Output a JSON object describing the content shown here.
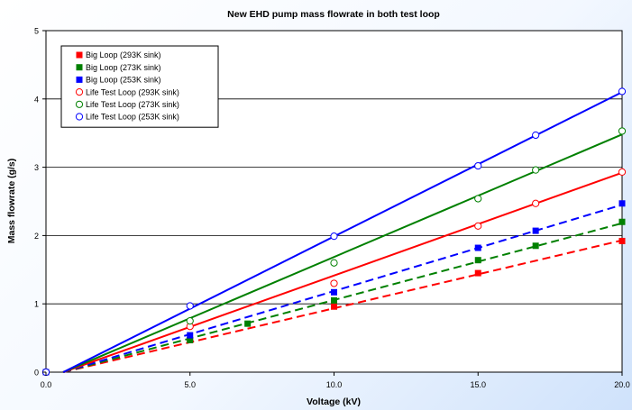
{
  "chart_data": {
    "type": "scatter",
    "title": "New EHD pump mass flowrate in both test loop",
    "xlabel": "Voltage (kV)",
    "ylabel": "Mass flowrate (g/s)",
    "xlim": [
      0,
      20
    ],
    "ylim": [
      0,
      5
    ],
    "xticks": [
      "0.0",
      "5.0",
      "10.0",
      "15.0",
      "20.0"
    ],
    "yticks": [
      "0",
      "1",
      "2",
      "3",
      "4",
      "5"
    ],
    "grid": "horizontal",
    "legend_position": "top-left",
    "series": [
      {
        "name": "Big Loop (293K sink)",
        "color": "#ff0000",
        "marker": "filled-square",
        "line": "dashed",
        "x": [
          0,
          5,
          10,
          15,
          20
        ],
        "y": [
          0,
          0.47,
          0.96,
          1.45,
          1.92
        ],
        "trend": [
          [
            0.6,
            0
          ],
          [
            20,
            1.93
          ]
        ]
      },
      {
        "name": "Big Loop (273K sink)",
        "color": "#008000",
        "marker": "filled-square",
        "line": "dashed",
        "x": [
          0,
          5,
          7,
          10,
          15,
          17,
          20
        ],
        "y": [
          0,
          0.47,
          0.71,
          1.05,
          1.64,
          1.85,
          2.2
        ],
        "trend": [
          [
            0.6,
            0
          ],
          [
            20,
            2.18
          ]
        ]
      },
      {
        "name": "Big Loop (253K sink)",
        "color": "#0000ff",
        "marker": "filled-square",
        "line": "dashed",
        "x": [
          0,
          5,
          10,
          15,
          17,
          20
        ],
        "y": [
          0,
          0.54,
          1.17,
          1.82,
          2.07,
          2.47
        ],
        "trend": [
          [
            0.6,
            0
          ],
          [
            20,
            2.45
          ]
        ]
      },
      {
        "name": "Life Test Loop (293K sink)",
        "color": "#ff0000",
        "marker": "open-circle",
        "line": "solid",
        "x": [
          0,
          5,
          10,
          15,
          17,
          20
        ],
        "y": [
          0,
          0.67,
          1.3,
          2.14,
          2.47,
          2.93
        ],
        "trend": [
          [
            0.6,
            0
          ],
          [
            20,
            2.92
          ]
        ]
      },
      {
        "name": "Life Test Loop (273K sink)",
        "color": "#008000",
        "marker": "open-circle",
        "line": "solid",
        "x": [
          0,
          5,
          10,
          15,
          17,
          20
        ],
        "y": [
          0,
          0.75,
          1.6,
          2.54,
          2.96,
          3.53
        ],
        "trend": [
          [
            0.6,
            0
          ],
          [
            20,
            3.48
          ]
        ]
      },
      {
        "name": "Life Test Loop (253K sink)",
        "color": "#0000ff",
        "marker": "open-circle",
        "line": "solid",
        "x": [
          0,
          5,
          10,
          15,
          17,
          20
        ],
        "y": [
          0,
          0.97,
          1.99,
          3.02,
          3.47,
          4.11
        ],
        "trend": [
          [
            0.6,
            0
          ],
          [
            20,
            4.1
          ]
        ]
      }
    ]
  }
}
